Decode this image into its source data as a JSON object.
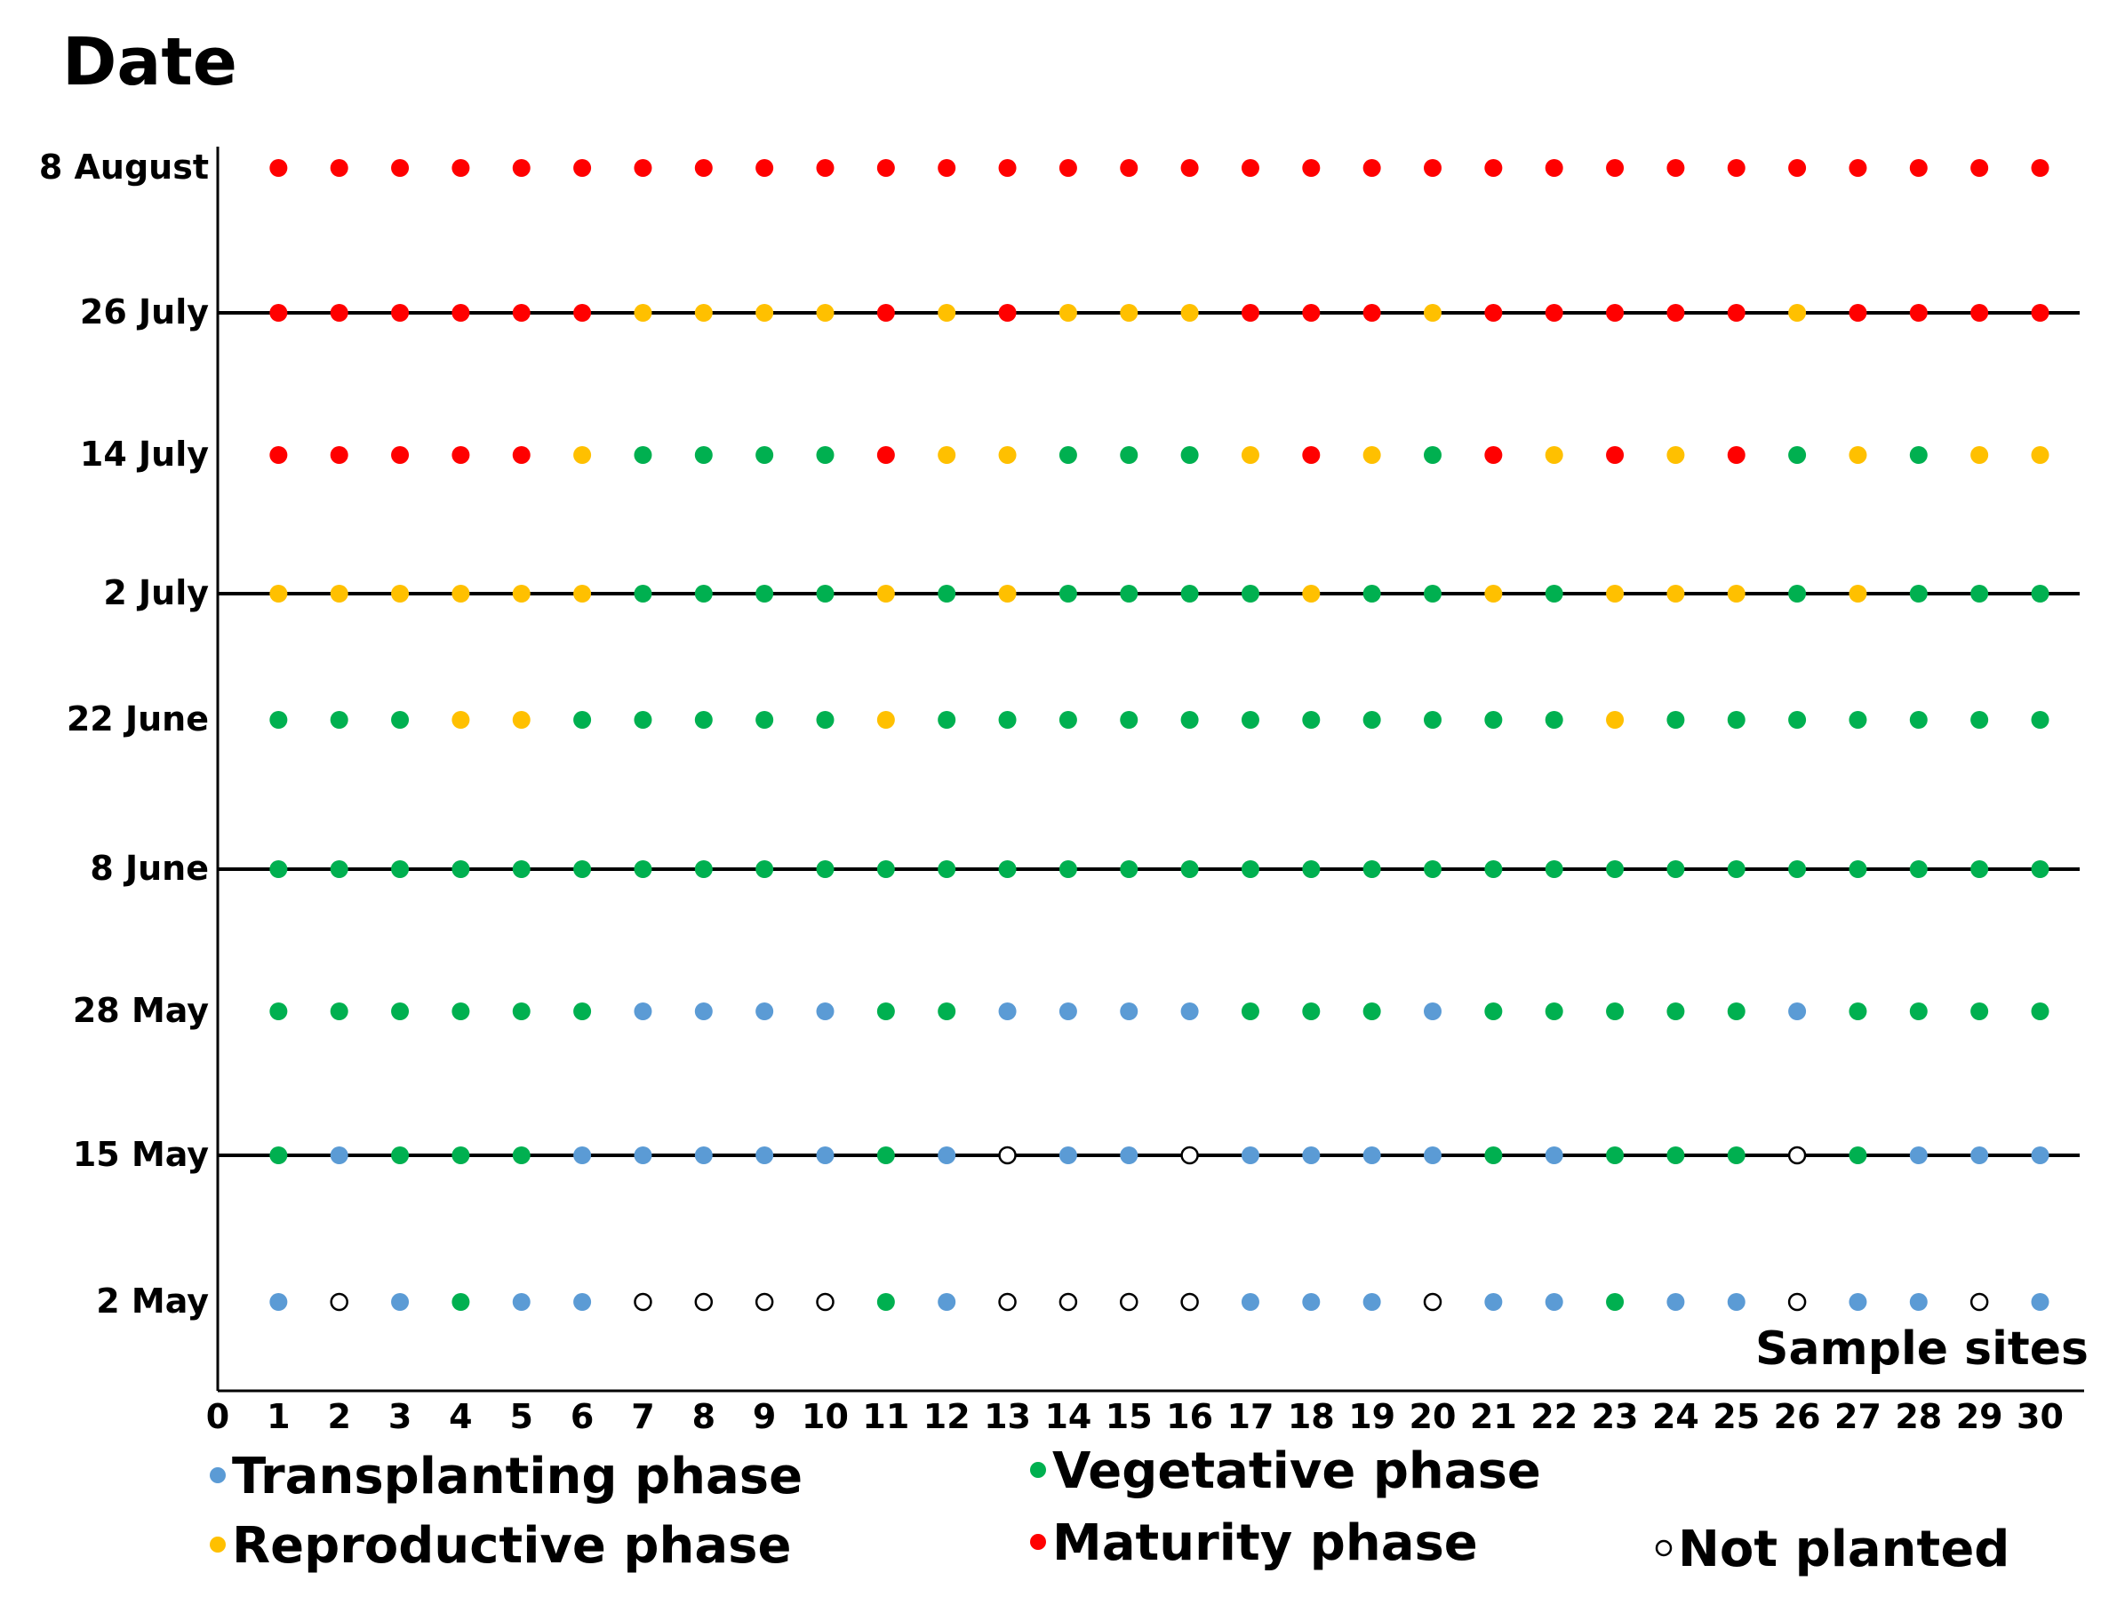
{
  "chart_data": {
    "type": "scatter",
    "title": "Date",
    "xlabel": "Sample sites",
    "x_ticks": [
      "0",
      "1",
      "2",
      "3",
      "4",
      "5",
      "6",
      "7",
      "8",
      "9",
      "10",
      "11",
      "12",
      "13",
      "14",
      "15",
      "16",
      "17",
      "18",
      "19",
      "20",
      "21",
      "22",
      "23",
      "24",
      "25",
      "26",
      "27",
      "28",
      "29",
      "30"
    ],
    "xlim": [
      0,
      30
    ],
    "dates": [
      "2 May",
      "15 May",
      "28 May",
      "8 June",
      "22 June",
      "2 July",
      "14 July",
      "26 July",
      "8 August"
    ],
    "lined_rows": [
      "15 May",
      "8 June",
      "2 July",
      "26 July"
    ],
    "phase_codes": {
      "T": "Transplanting phase",
      "V": "Vegetative phase",
      "R": "Reproductive phase",
      "M": "Maturity phase",
      "N": "Not planted"
    },
    "phases": {
      "2 May": [
        "T",
        "N",
        "T",
        "V",
        "T",
        "T",
        "N",
        "N",
        "N",
        "N",
        "V",
        "T",
        "N",
        "N",
        "N",
        "N",
        "T",
        "T",
        "T",
        "N",
        "T",
        "T",
        "V",
        "T",
        "T",
        "N",
        "T",
        "T",
        "N",
        "T"
      ],
      "15 May": [
        "V",
        "T",
        "V",
        "V",
        "V",
        "T",
        "T",
        "T",
        "T",
        "T",
        "V",
        "T",
        "N",
        "T",
        "T",
        "N",
        "T",
        "T",
        "T",
        "T",
        "V",
        "T",
        "V",
        "V",
        "V",
        "N",
        "V",
        "T",
        "T",
        "T"
      ],
      "28 May": [
        "V",
        "V",
        "V",
        "V",
        "V",
        "V",
        "T",
        "T",
        "T",
        "T",
        "V",
        "V",
        "T",
        "T",
        "T",
        "T",
        "V",
        "V",
        "V",
        "T",
        "V",
        "V",
        "V",
        "V",
        "V",
        "T",
        "V",
        "V",
        "V",
        "V"
      ],
      "8 June": [
        "V",
        "V",
        "V",
        "V",
        "V",
        "V",
        "V",
        "V",
        "V",
        "V",
        "V",
        "V",
        "V",
        "V",
        "V",
        "V",
        "V",
        "V",
        "V",
        "V",
        "V",
        "V",
        "V",
        "V",
        "V",
        "V",
        "V",
        "V",
        "V",
        "V"
      ],
      "22 June": [
        "V",
        "V",
        "V",
        "R",
        "R",
        "V",
        "V",
        "V",
        "V",
        "V",
        "R",
        "V",
        "V",
        "V",
        "V",
        "V",
        "V",
        "V",
        "V",
        "V",
        "V",
        "V",
        "R",
        "V",
        "V",
        "V",
        "V",
        "V",
        "V",
        "V"
      ],
      "2 July": [
        "R",
        "R",
        "R",
        "R",
        "R",
        "R",
        "V",
        "V",
        "V",
        "V",
        "R",
        "V",
        "R",
        "V",
        "V",
        "V",
        "V",
        "R",
        "V",
        "V",
        "R",
        "V",
        "R",
        "R",
        "R",
        "V",
        "R",
        "V",
        "V",
        "V"
      ],
      "14 July": [
        "M",
        "M",
        "M",
        "M",
        "M",
        "R",
        "V",
        "V",
        "V",
        "V",
        "M",
        "R",
        "R",
        "V",
        "V",
        "V",
        "R",
        "M",
        "R",
        "V",
        "M",
        "R",
        "M",
        "R",
        "M",
        "V",
        "R",
        "V",
        "R",
        "R"
      ],
      "26 July": [
        "M",
        "M",
        "M",
        "M",
        "M",
        "M",
        "R",
        "R",
        "R",
        "R",
        "M",
        "R",
        "M",
        "R",
        "R",
        "R",
        "M",
        "M",
        "M",
        "R",
        "M",
        "M",
        "M",
        "M",
        "M",
        "R",
        "M",
        "M",
        "M",
        "M"
      ],
      "8 August": [
        "M",
        "M",
        "M",
        "M",
        "M",
        "M",
        "M",
        "M",
        "M",
        "M",
        "M",
        "M",
        "M",
        "M",
        "M",
        "M",
        "M",
        "M",
        "M",
        "M",
        "M",
        "M",
        "M",
        "M",
        "M",
        "M",
        "M",
        "M",
        "M",
        "M"
      ]
    },
    "legend": [
      {
        "code": "T",
        "label": "Transplanting  phase"
      },
      {
        "code": "V",
        "label": "Vegetative  phase"
      },
      {
        "code": "R",
        "label": "Reproductive  phase"
      },
      {
        "code": "M",
        "label": "Maturity  phase"
      },
      {
        "code": "N",
        "label": "Not planted"
      }
    ],
    "colors": {
      "T": "#5b9bd5",
      "V": "#00b050",
      "R": "#ffc000",
      "M": "#ff0000",
      "N": "#ffffff"
    },
    "legend_placement": "bottom",
    "grid": false
  }
}
